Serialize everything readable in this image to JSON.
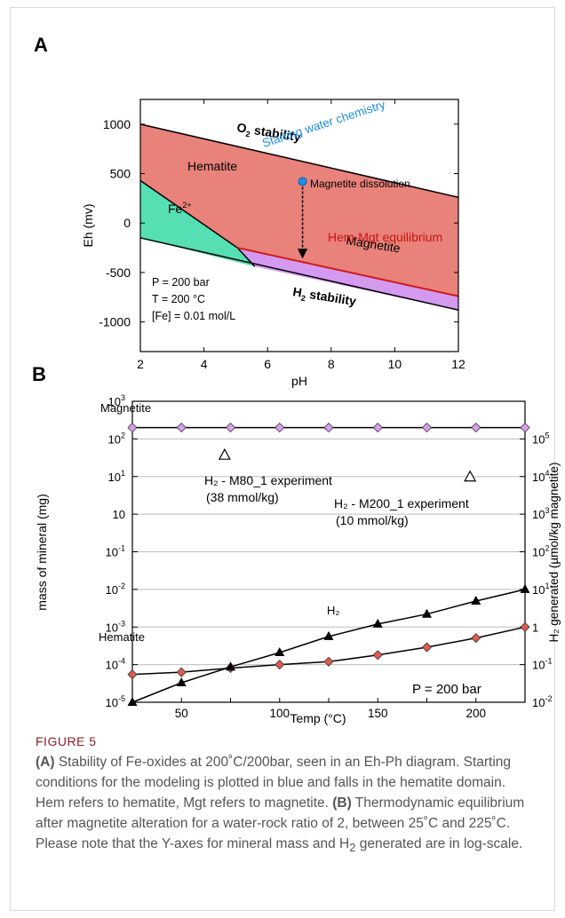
{
  "panels": {
    "a": "A",
    "b": "B"
  },
  "chart_data": [
    {
      "type": "area",
      "xlabel": "pH",
      "ylabel": "Eh (mv)",
      "xlim": [
        2,
        12
      ],
      "ylim": [
        -1300,
        1250
      ],
      "xticks": [
        2,
        4,
        6,
        8,
        10,
        12
      ],
      "yticks": [
        1000,
        500,
        0,
        -500,
        -1000
      ],
      "regions": [
        {
          "name": "Hematite",
          "color": "#e8827a"
        },
        {
          "name": "Fe2+",
          "color": "#55dfb3"
        },
        {
          "name": "Magnetite",
          "color": "#d49af0"
        }
      ],
      "boundaries": {
        "o2_line": [
          [
            2,
            1000
          ],
          [
            12,
            260
          ]
        ],
        "h2_line": [
          [
            2,
            -150
          ],
          [
            12,
            -880
          ]
        ],
        "hem_fe_line": [
          [
            2,
            430
          ],
          [
            5.05,
            -250
          ]
        ],
        "hem_mgt_line": [
          [
            5.05,
            -250
          ],
          [
            12,
            -740
          ]
        ],
        "fe_mgt_line": [
          [
            5.05,
            -250
          ],
          [
            5.6,
            -440
          ]
        ]
      },
      "start_point": {
        "x": 7.1,
        "y": 420,
        "color": "#1f8ee6"
      },
      "arrow": {
        "from": [
          7.1,
          420
        ],
        "to": [
          7.1,
          -340
        ]
      },
      "labels": {
        "o2": "O",
        "o2_sub": "2",
        "o2_rest": " stability",
        "h2": "H",
        "h2_sub": "2",
        "h2_rest": " stability",
        "hematite": "Hematite",
        "fe": "Fe",
        "fe_sup": "2+",
        "magnetite": "Magnetite",
        "start": "Starting water chemistry",
        "dissolution": "Magnetite dissolution",
        "hem_mgt": "Hem-Mgt equilibrium",
        "cond1": "P = 200 bar",
        "cond2": "T = 200 °C",
        "cond3": "[Fe] = 0.01 mol/L"
      },
      "colors": {
        "hem_mgt": "#d01818",
        "start": "#1f8ee6"
      }
    },
    {
      "type": "line",
      "xlabel": "Temp (°C)",
      "ylabel": "mass of mineral (mg)",
      "y2label": "H₂ generated (µmol/kg magnetite)",
      "xlim": [
        25,
        225
      ],
      "ylog_range": [
        -5,
        3
      ],
      "y2log_range": [
        -2,
        6
      ],
      "xticks": [
        50,
        100,
        150,
        200
      ],
      "yticks": [
        "10-5",
        "10-4",
        "10-3",
        "10-2",
        "10-1",
        "10",
        "101",
        "102",
        "103"
      ],
      "y2ticks": [
        "10-2",
        "10-1",
        "1",
        "101",
        "102",
        "103",
        "104",
        "105"
      ],
      "series": [
        {
          "name": "Magnetite",
          "axis": "left",
          "marker": "diamond",
          "color": "#d8a0ee",
          "x": [
            25,
            50,
            75,
            100,
            125,
            150,
            175,
            200,
            225
          ],
          "y": [
            200,
            200,
            200,
            200,
            200,
            200,
            200,
            200,
            200
          ]
        },
        {
          "name": "Hematite",
          "axis": "left",
          "marker": "diamond",
          "color": "#e05a50",
          "x": [
            25,
            50,
            75,
            100,
            125,
            150,
            175,
            200,
            225
          ],
          "y": [
            5.5e-05,
            6.3e-05,
            8.1e-05,
            0.0001,
            0.00012,
            0.00018,
            0.00029,
            0.00051,
            0.001
          ]
        },
        {
          "name": "H₂",
          "axis": "right",
          "marker": "triangle",
          "color": "#000000",
          "x": [
            25,
            50,
            75,
            100,
            125,
            150,
            175,
            200,
            225
          ],
          "y": [
            0.01,
            0.033,
            0.087,
            0.21,
            0.56,
            1.2,
            2.2,
            4.9,
            10
          ]
        }
      ],
      "experiments": [
        {
          "x": 72,
          "y2": 38000,
          "label1": "H₂ - M80_1 experiment",
          "label2": "(38 mmol/kg)"
        },
        {
          "x": 197,
          "y2": 10000,
          "label1": "H₂ - M200_1 experiment",
          "label2": "(10 mmol/kg)"
        }
      ],
      "annotations": {
        "pressure": "P = 200 bar",
        "magnetite": "Magnetite",
        "hematite": "Hematite",
        "h2": "H₂"
      }
    }
  ],
  "caption": {
    "label": "FIGURE 5",
    "a_tag": "(A)",
    "a_text": " Stability of Fe-oxides at 200˚C/200bar, seen in an Eh-Ph diagram. Starting conditions for the modeling is plotted in blue and falls in the hematite domain. Hem refers to hematite, Mgt refers to magnetite. ",
    "b_tag": "(B)",
    "b_text1": " Thermodynamic equilibrium after magnetite alteration for a water-rock ratio of 2, between 25˚C and 225˚C. Please note that the Y-axes for mineral mass and H",
    "b_sub": "2",
    "b_text2": " generated are in log-scale."
  }
}
